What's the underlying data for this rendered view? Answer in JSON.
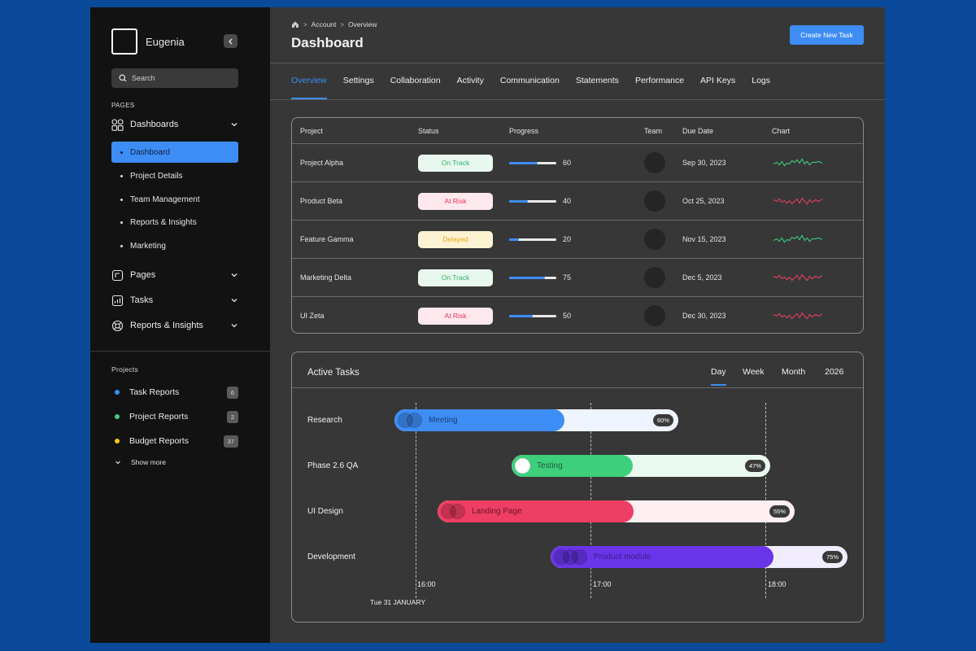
{
  "sidebar": {
    "brand_name": "Eugenia",
    "search_placeholder": "Search",
    "pages_label": "PAGES",
    "groups": [
      {
        "label": "Dashboards",
        "icon": "grid-icon"
      },
      {
        "label": "Pages",
        "icon": "pages-icon"
      },
      {
        "label": "Tasks",
        "icon": "chart-icon"
      },
      {
        "label": "Reports & Insights",
        "icon": "lifebuoy-icon"
      }
    ],
    "dashboard_items": [
      "Dashboard",
      "Project Details",
      "Team Management",
      "Reports & Insights",
      "Marketing"
    ],
    "projects_label": "Projects",
    "projects": [
      {
        "label": "Task Reports",
        "count": "6",
        "color": "#3d8df5"
      },
      {
        "label": "Project Reports",
        "count": "2",
        "color": "#3ecf7c"
      },
      {
        "label": "Budget Reports",
        "count": "37",
        "color": "#f5c518"
      }
    ],
    "show_more": "Show more"
  },
  "header": {
    "breadcrumb": [
      "Account",
      "Overview"
    ],
    "title": "Dashboard",
    "create_button": "Create New Task"
  },
  "tabs": [
    "Overview",
    "Settings",
    "Collaboration",
    "Activity",
    "Communication",
    "Statements",
    "Performance",
    "API Keys",
    "Logs"
  ],
  "table": {
    "headers": [
      "Project",
      "Status",
      "Progress",
      "Team",
      "Due Date",
      "Chart"
    ],
    "rows": [
      {
        "project": "Project Alpha",
        "status": "On Track",
        "progress": 60,
        "progress_label": "60",
        "due": "Sep 30, 2023",
        "trend": "up"
      },
      {
        "project": "Product Beta",
        "status": "At Risk",
        "progress": 40,
        "progress_label": "40",
        "due": "Oct 25, 2023",
        "trend": "down"
      },
      {
        "project": "Feature Gamma",
        "status": "Delayed",
        "progress": 20,
        "progress_label": "20",
        "due": "Nov 15, 2023",
        "trend": "up"
      },
      {
        "project": "Marketing Delta",
        "status": "On Track",
        "progress": 75,
        "progress_label": "75",
        "due": "Dec 5, 2023",
        "trend": "down"
      },
      {
        "project": "UI Zeta",
        "status": "At Risk",
        "progress": 50,
        "progress_label": "50",
        "due": "Dec 30, 2023",
        "trend": "down"
      }
    ],
    "status_colors": {
      "On Track": {
        "bg": "#e8f8ef",
        "fg": "#2fb36a"
      },
      "At Risk": {
        "bg": "#fde8ee",
        "fg": "#e8325e"
      },
      "Delayed": {
        "bg": "#fdf3d2",
        "fg": "#e5a81a"
      }
    }
  },
  "gantt": {
    "title": "Active Tasks",
    "periods": [
      "Day",
      "Week",
      "Month",
      "2026"
    ],
    "active_period": "Day",
    "times": [
      "16:00",
      "17:00",
      "18:00"
    ],
    "date": "Tue 31 JANUARY",
    "rows": [
      {
        "label": "Research",
        "task": "Meeting",
        "percent": "60%",
        "fill": 60,
        "color": "#3d8df5",
        "text_color": "#1a3d75",
        "track": "#eef4fd",
        "avatars": 2
      },
      {
        "label": "Phase 2.6 QA",
        "task": "Testing",
        "percent": "47%",
        "fill": 47,
        "color": "#3ecf7c",
        "text_color": "#1e5c3a",
        "track": "#eaf9f0",
        "avatars": 1
      },
      {
        "label": "UI Design",
        "task": "Landing Page",
        "percent": "55%",
        "fill": 55,
        "color": "#ee3e63",
        "text_color": "#6e1328",
        "track": "#fdeef1",
        "avatars": 2
      },
      {
        "label": "Development",
        "task": "Product module",
        "percent": "75%",
        "fill": 75,
        "color": "#6a35e8",
        "text_color": "#3b1d8a",
        "track": "#f1edfc",
        "avatars": 3
      }
    ]
  }
}
